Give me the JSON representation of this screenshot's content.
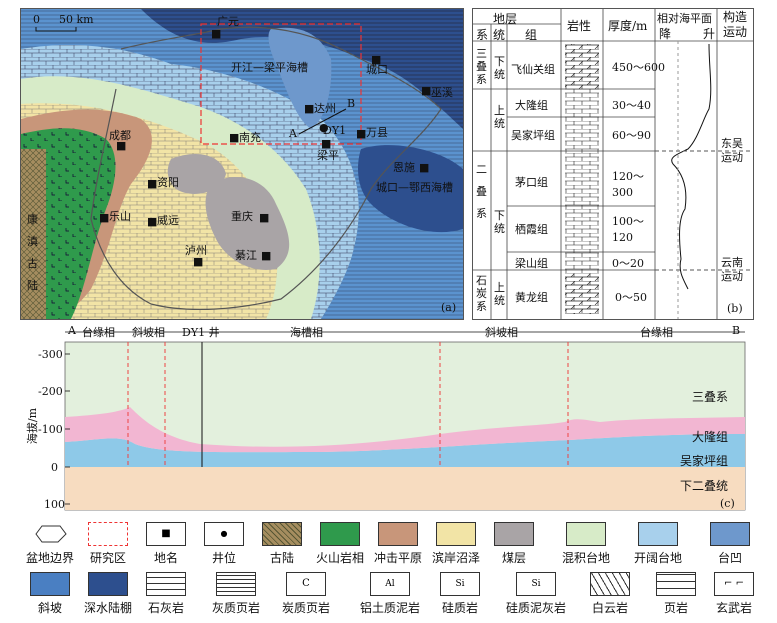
{
  "panel_a": {
    "label": "(a)",
    "scale": {
      "zero": "0",
      "dist": "50 km"
    },
    "cities": [
      {
        "name": "广元",
        "type": "city"
      },
      {
        "name": "城口",
        "type": "city"
      },
      {
        "name": "巫溪",
        "type": "city"
      },
      {
        "name": "达州",
        "type": "city"
      },
      {
        "name": "万县",
        "type": "city"
      },
      {
        "name": "成都",
        "type": "city"
      },
      {
        "name": "南充",
        "type": "city"
      },
      {
        "name": "梁平",
        "type": "city"
      },
      {
        "name": "恩施",
        "type": "city"
      },
      {
        "name": "资阳",
        "type": "city"
      },
      {
        "name": "乐山",
        "type": "city"
      },
      {
        "name": "威远",
        "type": "city"
      },
      {
        "name": "重庆",
        "type": "city"
      },
      {
        "name": "泸州",
        "type": "city"
      },
      {
        "name": "綦江",
        "type": "city"
      },
      {
        "name": "DY1",
        "type": "well"
      }
    ],
    "labels": {
      "kaijiang": "开江—梁平海槽",
      "chengkou": "城口—鄂西海槽",
      "a": "A",
      "b": "B",
      "kangdian": "康滇古陆"
    }
  },
  "panel_b": {
    "label": "(b)",
    "headers": {
      "strata": "地层",
      "system": "系",
      "series": "统",
      "formation": "组",
      "lith": "岩性",
      "thick": "厚度/m",
      "sea": "相对海平面",
      "down": "降",
      "up": "升",
      "tect": "构造运动"
    },
    "rows": [
      {
        "system": "三叠系",
        "series": "下统",
        "formation": "飞仙关组",
        "thick": "450～600"
      },
      {
        "system": "二叠系",
        "series": "上统",
        "formation": "大隆组",
        "thick": "30～40"
      },
      {
        "system": "",
        "series": "",
        "formation": "吴家坪组",
        "thick": "60～90"
      },
      {
        "system": "",
        "series": "下统",
        "formation": "茅口组",
        "thick": "120～300"
      },
      {
        "system": "",
        "series": "",
        "formation": "栖霞组",
        "thick": "100～120"
      },
      {
        "system": "",
        "series": "",
        "formation": "梁山组",
        "thick": "0～20"
      },
      {
        "system": "石炭系",
        "series": "上统",
        "formation": "黄龙组",
        "thick": "0～50"
      }
    ],
    "tectonics": [
      "东吴运动",
      "云南运动"
    ]
  },
  "panel_c": {
    "label": "(c)",
    "ylabel": "海拔/m",
    "yticks": [
      "-300",
      "-200",
      "-100",
      "0",
      "100"
    ],
    "top_labels": {
      "a": "A",
      "b": "B",
      "well": "DY1 井"
    },
    "facies": [
      "台缘相",
      "斜坡相",
      "海槽相",
      "斜坡相",
      "台缘相"
    ],
    "layers": [
      "三叠系",
      "大隆组",
      "吴家坪组",
      "下二叠统"
    ]
  },
  "legend": [
    {
      "label": "盆地边界",
      "icon": "boundary"
    },
    {
      "label": "研究区",
      "icon": "study-area"
    },
    {
      "label": "地名",
      "icon": "place"
    },
    {
      "label": "井位",
      "icon": "well"
    },
    {
      "label": "古陆",
      "icon": "old-land"
    },
    {
      "label": "火山岩相",
      "icon": "volcanic"
    },
    {
      "label": "冲击平原",
      "icon": "alluvial"
    },
    {
      "label": "滨岸沼泽",
      "icon": "swamp"
    },
    {
      "label": "煤层",
      "icon": "coal"
    },
    {
      "label": "混积台地",
      "icon": "mixed-platform"
    },
    {
      "label": "开阔台地",
      "icon": "open-platform"
    },
    {
      "label": "台凹",
      "icon": "platform-depression"
    },
    {
      "label": "斜坡",
      "icon": "slope"
    },
    {
      "label": "深水陆棚",
      "icon": "deep-shelf"
    },
    {
      "label": "石灰岩",
      "icon": "limestone"
    },
    {
      "label": "灰质页岩",
      "icon": "calc-shale"
    },
    {
      "label": "炭质页岩",
      "icon": "carb-shale"
    },
    {
      "label": "铝土质泥岩",
      "icon": "bauxite"
    },
    {
      "label": "硅质岩",
      "icon": "siliceous"
    },
    {
      "label": "硅质泥灰岩",
      "icon": "sil-marl"
    },
    {
      "label": "白云岩",
      "icon": "dolomite"
    },
    {
      "label": "页岩",
      "icon": "shale"
    },
    {
      "label": "玄武岩",
      "icon": "basalt"
    }
  ],
  "colors": {
    "volcanic": "#2f9a4c",
    "alluvial": "#c8967a",
    "swamp": "#f2e4a6",
    "coal": "#a9a4a6",
    "mixed": "#d7ebc8",
    "open": "#a8d0ec",
    "depression": "#6e98cc",
    "slope": "#4a7fc2",
    "deep": "#2d4f8e",
    "pink": "#f2b6d2",
    "blue_layer": "#8ec9e8",
    "beige": "#f7dcc0",
    "green_bg": "#e3f0dd"
  }
}
